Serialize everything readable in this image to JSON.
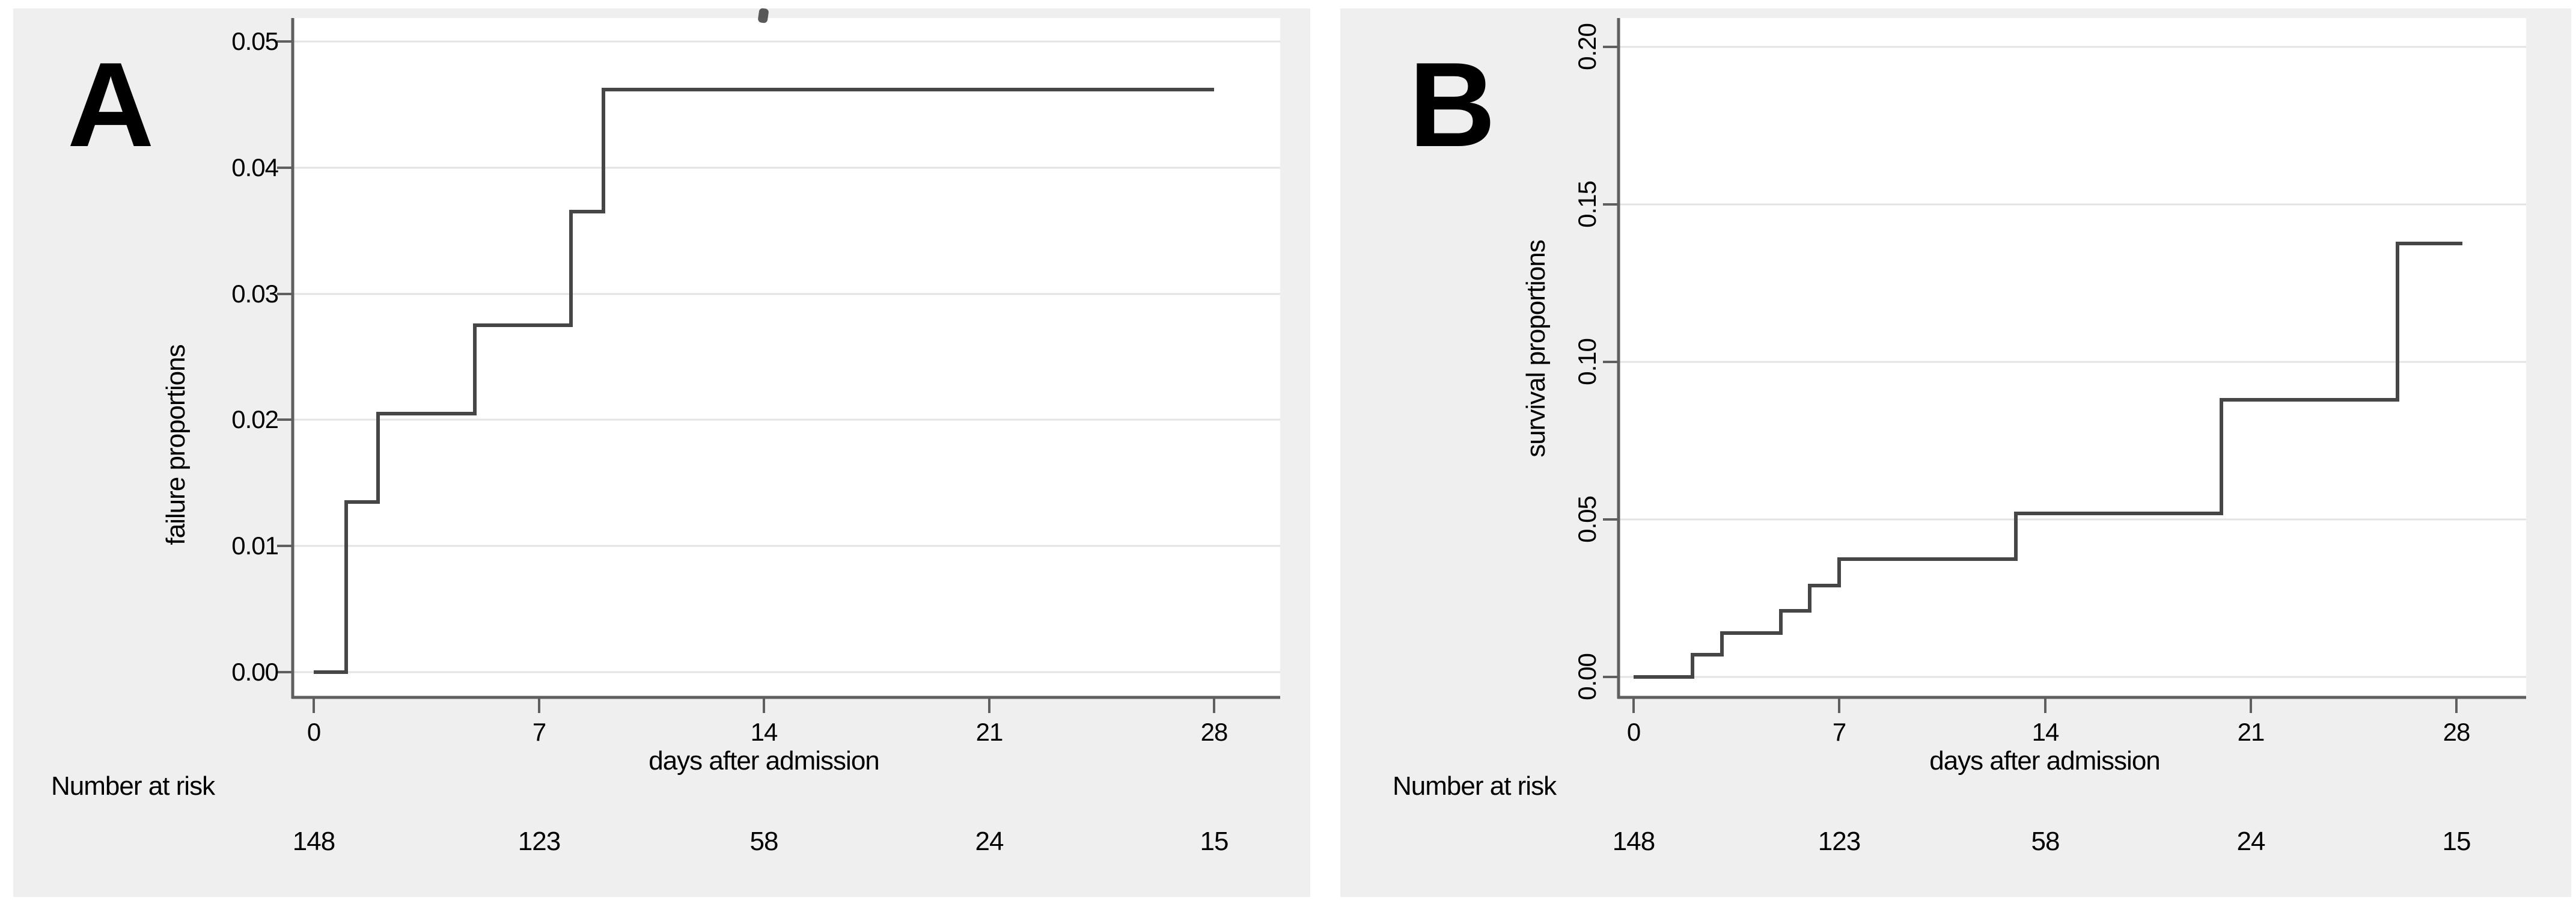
{
  "colors": {
    "page_bg": "#ffffff",
    "panel_bg": "#efefef",
    "plot_bg": "#ffffff",
    "grid": "#e3e3e3",
    "axis": "#5f5f5f",
    "line": "#464646",
    "text": "#000000"
  },
  "chart_data": [
    {
      "type": "line",
      "subtype": "step-post",
      "panel_label": "A",
      "title": "",
      "xlabel": "days after admission",
      "ylabel": "failure proportions",
      "xlim": [
        0,
        28
      ],
      "ylim": [
        0,
        0.05
      ],
      "grid": "horizontal",
      "legend": "none",
      "xtick_values": [
        0,
        7,
        14,
        21,
        28
      ],
      "xtick_labels": [
        "0",
        "7",
        "14",
        "21",
        "28"
      ],
      "ytick_values": [
        0,
        0.01,
        0.02,
        0.03,
        0.04,
        0.05
      ],
      "ytick_labels": [
        "0.00",
        "0.01",
        "0.02",
        "0.03",
        "0.04",
        "0.05"
      ],
      "steps": [
        [
          0,
          0
        ],
        [
          1,
          0.0135
        ],
        [
          2,
          0.0205
        ],
        [
          5,
          0.0275
        ],
        [
          8,
          0.0365
        ],
        [
          9,
          0.0462
        ]
      ],
      "end_x": 28,
      "line_color": "#464646",
      "number_at_risk": {
        "label": "Number at risk",
        "times": [
          0,
          7,
          14,
          21,
          28
        ],
        "values": [
          148,
          123,
          58,
          24,
          15
        ]
      }
    },
    {
      "type": "line",
      "subtype": "step-post",
      "panel_label": "B",
      "title": "",
      "xlabel": "days after admission",
      "ylabel": "survival proportions",
      "xlim": [
        0,
        28
      ],
      "ylim": [
        0,
        0.2
      ],
      "grid": "horizontal",
      "legend": "none",
      "xtick_values": [
        0,
        7,
        14,
        21,
        28
      ],
      "xtick_labels": [
        "0",
        "7",
        "14",
        "21",
        "28"
      ],
      "ytick_values": [
        0,
        0.05,
        0.1,
        0.15,
        0.2
      ],
      "ytick_labels": [
        "0.00",
        "0.05",
        "0.10",
        "0.15",
        "0.20"
      ],
      "steps": [
        [
          0,
          0
        ],
        [
          2,
          0.007
        ],
        [
          3,
          0.014
        ],
        [
          5,
          0.021
        ],
        [
          6,
          0.029
        ],
        [
          7,
          0.0375
        ],
        [
          13,
          0.052
        ],
        [
          20,
          0.088
        ],
        [
          26,
          0.1375
        ]
      ],
      "end_x": 28.2,
      "line_color": "#464646",
      "number_at_risk": {
        "label": "Number at risk",
        "times": [
          0,
          7,
          14,
          21,
          28
        ],
        "values": [
          148,
          123,
          58,
          24,
          15
        ]
      }
    }
  ]
}
